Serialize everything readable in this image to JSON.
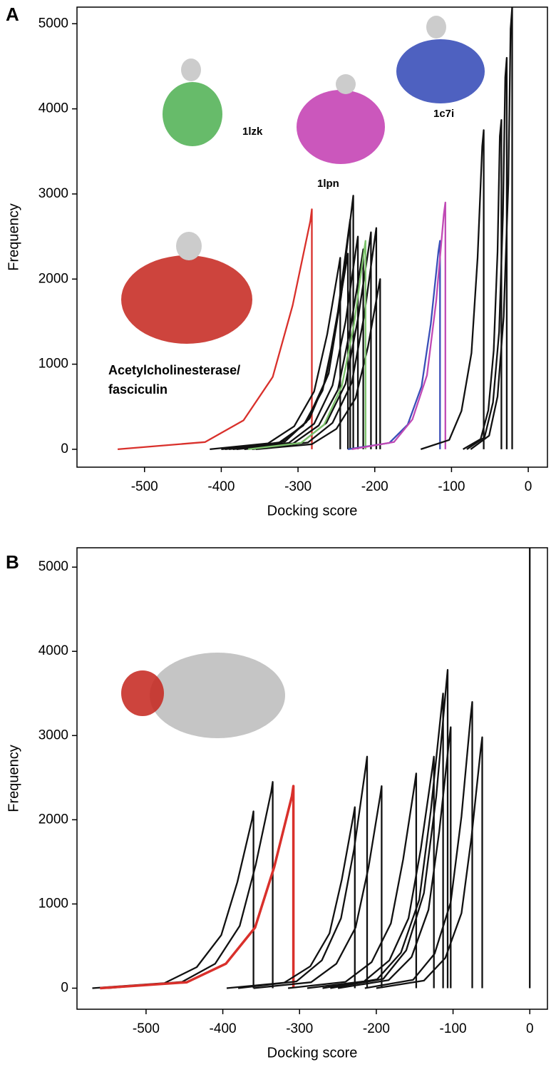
{
  "chart_data": [
    {
      "type": "line",
      "panel_label": "A",
      "xlabel": "Docking score",
      "ylabel": "Frequency",
      "xlim": [
        -588,
        25
      ],
      "ylim": [
        -210,
        5195
      ],
      "xticks": [
        -500,
        -400,
        -300,
        -200,
        -100,
        0
      ],
      "yticks": [
        0,
        1000,
        2000,
        3000,
        4000,
        5000
      ],
      "annotations": [
        "1lzk",
        "1lpn",
        "1c7i",
        "Acetylcholinesterase/",
        "fasciculin"
      ],
      "series": [
        {
          "color": "#d9302b",
          "x": [
            -535,
            -421,
            -371,
            -333,
            -307,
            -284,
            -282,
            -282
          ],
          "values": [
            0,
            85,
            340,
            850,
            1690,
            2680,
            2820,
            0
          ]
        },
        {
          "color": "#111111",
          "x": [
            -415,
            -339,
            -305,
            -279,
            -262,
            -247,
            -245,
            -245
          ],
          "values": [
            0,
            70,
            270,
            680,
            1350,
            2140,
            2250,
            0
          ]
        },
        {
          "color": "#111111",
          "x": [
            -400,
            -326,
            -293,
            -268,
            -252,
            -237,
            -235,
            -235
          ],
          "values": [
            0,
            70,
            280,
            690,
            1380,
            2190,
            2300,
            0
          ]
        },
        {
          "color": "#111111",
          "x": [
            -390,
            -317,
            -285,
            -260,
            -244,
            -230,
            -228,
            -228
          ],
          "values": [
            0,
            90,
            360,
            890,
            1790,
            2830,
            2980,
            0
          ]
        },
        {
          "color": "#111111",
          "x": [
            -385,
            -312,
            -279,
            -255,
            -238,
            -224,
            -222,
            -222
          ],
          "values": [
            0,
            75,
            300,
            750,
            1500,
            2380,
            2500,
            0
          ]
        },
        {
          "color": "#111111",
          "x": [
            -380,
            -306,
            -273,
            -248,
            -232,
            -217,
            -215,
            -215
          ],
          "values": [
            0,
            70,
            280,
            700,
            1410,
            2230,
            2350,
            0
          ]
        },
        {
          "color": "#111111",
          "x": [
            -370,
            -296,
            -263,
            -238,
            -222,
            -207,
            -205,
            -205
          ],
          "values": [
            0,
            75,
            310,
            770,
            1530,
            2420,
            2550,
            0
          ]
        },
        {
          "color": "#111111",
          "x": [
            -360,
            -287,
            -255,
            -230,
            -214,
            -200,
            -198,
            -198
          ],
          "values": [
            0,
            80,
            310,
            780,
            1560,
            2470,
            2600,
            0
          ]
        },
        {
          "color": "#111111",
          "x": [
            -355,
            -282,
            -250,
            -225,
            -209,
            -195,
            -193,
            -193
          ],
          "values": [
            0,
            60,
            240,
            600,
            1200,
            1900,
            2000,
            0
          ]
        },
        {
          "color": "#111111",
          "x": [
            -395,
            -322,
            -289,
            -264,
            -248,
            -234,
            -232,
            -232
          ],
          "values": [
            0,
            80,
            320,
            810,
            1620,
            2570,
            2700,
            0
          ]
        },
        {
          "color": "#7cc36b",
          "x": [
            -365,
            -296,
            -266,
            -243,
            -227,
            -214,
            -212,
            -212
          ],
          "values": [
            0,
            75,
            290,
            740,
            1470,
            2330,
            2450,
            0
          ]
        },
        {
          "color": "#3a4fb8",
          "x": [
            -235,
            -181,
            -157,
            -139,
            -127,
            -117,
            -115,
            -115
          ],
          "values": [
            0,
            75,
            290,
            740,
            1470,
            2330,
            2450,
            0
          ]
        },
        {
          "color": "#c04ab5",
          "x": [
            -230,
            -175,
            -151,
            -132,
            -120,
            -110,
            -108,
            -108
          ],
          "values": [
            0,
            85,
            350,
            870,
            1740,
            2760,
            2900,
            0
          ]
        },
        {
          "color": "#111111",
          "x": [
            -140,
            -103,
            -87,
            -74,
            -66,
            -60,
            -58,
            -58
          ],
          "values": [
            0,
            110,
            450,
            1130,
            2250,
            3560,
            3750,
            0
          ]
        },
        {
          "color": "#111111",
          "x": [
            -85,
            -62,
            -52,
            -45,
            -40,
            -37,
            -35,
            -35
          ],
          "values": [
            0,
            120,
            460,
            1160,
            2320,
            3680,
            3870,
            0
          ]
        },
        {
          "color": "#111111",
          "x": [
            -80,
            -57,
            -46,
            -38,
            -33,
            -30,
            -28,
            -28
          ],
          "values": [
            0,
            140,
            550,
            1380,
            2760,
            4370,
            4600,
            0
          ]
        },
        {
          "color": "#111111",
          "x": [
            -75,
            -51,
            -40,
            -32,
            -26,
            -23,
            -21,
            -21
          ],
          "values": [
            0,
            160,
            620,
            1560,
            3120,
            4940,
            5195,
            0
          ]
        }
      ]
    },
    {
      "type": "line",
      "panel_label": "B",
      "xlabel": "Docking score",
      "ylabel": "Frequency",
      "xlim": [
        -590,
        23
      ],
      "ylim": [
        -250,
        5230
      ],
      "xticks": [
        -500,
        -400,
        -300,
        -200,
        -100,
        0
      ],
      "yticks": [
        0,
        1000,
        2000,
        3000,
        4000,
        5000
      ],
      "annotations": [],
      "series": [
        {
          "color": "#111111",
          "x": [
            -570,
            -476,
            -434,
            -402,
            -381,
            -362,
            -360,
            -360
          ],
          "values": [
            0,
            60,
            250,
            630,
            1260,
            2000,
            2100,
            0
          ]
        },
        {
          "color": "#111111",
          "x": [
            -550,
            -453,
            -410,
            -378,
            -357,
            -337,
            -335,
            -335
          ],
          "values": [
            0,
            75,
            290,
            740,
            1470,
            2330,
            2450,
            0
          ]
        },
        {
          "color": "#d9302b",
          "linewidth": 3.5,
          "x": [
            -560,
            -447,
            -396,
            -358,
            -333,
            -310,
            -308,
            -308
          ],
          "values": [
            0,
            70,
            290,
            720,
            1440,
            2280,
            2400,
            0
          ]
        },
        {
          "color": "#111111",
          "x": [
            -395,
            -320,
            -286,
            -261,
            -245,
            -230,
            -228,
            -228
          ],
          "values": [
            0,
            65,
            260,
            650,
            1290,
            2040,
            2150,
            0
          ]
        },
        {
          "color": "#111111",
          "x": [
            -380,
            -304,
            -271,
            -246,
            -229,
            -214,
            -212,
            -212
          ],
          "values": [
            0,
            80,
            330,
            830,
            1650,
            2610,
            2750,
            0
          ]
        },
        {
          "color": "#111111",
          "x": [
            -360,
            -285,
            -252,
            -227,
            -210,
            -195,
            -193,
            -193
          ],
          "values": [
            0,
            70,
            290,
            720,
            1440,
            2280,
            2400,
            0
          ]
        },
        {
          "color": "#111111",
          "x": [
            -315,
            -240,
            -206,
            -181,
            -165,
            -150,
            -148,
            -148
          ],
          "values": [
            0,
            75,
            310,
            770,
            1530,
            2420,
            2550,
            0
          ]
        },
        {
          "color": "#111111",
          "x": [
            -290,
            -216,
            -183,
            -158,
            -142,
            -127,
            -125,
            -125
          ],
          "values": [
            0,
            80,
            330,
            830,
            1650,
            2610,
            2750,
            0
          ]
        },
        {
          "color": "#111111",
          "x": [
            -270,
            -199,
            -168,
            -144,
            -129,
            -115,
            -113,
            -113
          ],
          "values": [
            0,
            105,
            420,
            1050,
            2100,
            3330,
            3500,
            0
          ]
        },
        {
          "color": "#111111",
          "x": [
            -260,
            -191,
            -161,
            -138,
            -122,
            -109,
            -107,
            -107
          ],
          "values": [
            0,
            110,
            450,
            1130,
            2270,
            3590,
            3780,
            0
          ]
        },
        {
          "color": "#111111",
          "x": [
            -250,
            -184,
            -154,
            -132,
            -118,
            -105,
            -103,
            -103
          ],
          "values": [
            0,
            95,
            370,
            930,
            1860,
            2950,
            3100,
            0
          ]
        },
        {
          "color": "#111111",
          "x": [
            -215,
            -152,
            -124,
            -103,
            -89,
            -77,
            -75,
            -75
          ],
          "values": [
            0,
            100,
            410,
            1020,
            2040,
            3230,
            3400,
            0
          ]
        },
        {
          "color": "#111111",
          "x": [
            -200,
            -138,
            -110,
            -89,
            -76,
            -64,
            -62,
            -62
          ],
          "values": [
            0,
            90,
            360,
            890,
            1790,
            2830,
            2980,
            0
          ]
        },
        {
          "color": "#111111",
          "x": [
            0,
            0
          ],
          "values": [
            0,
            5230
          ]
        }
      ]
    }
  ]
}
